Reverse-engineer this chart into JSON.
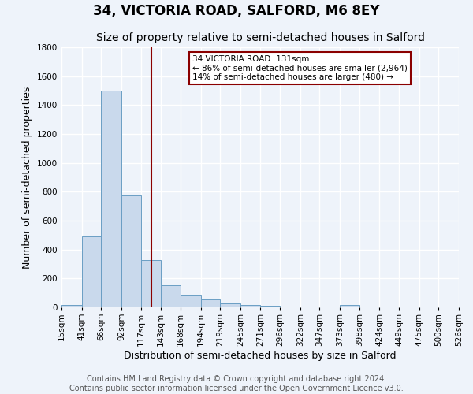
{
  "title": "34, VICTORIA ROAD, SALFORD, M6 8EY",
  "subtitle": "Size of property relative to semi-detached houses in Salford",
  "xlabel": "Distribution of semi-detached houses by size in Salford",
  "ylabel": "Number of semi-detached properties",
  "bar_color": "#c9d9ec",
  "bar_edge_color": "#6a9ec4",
  "background_color": "#eef3fa",
  "grid_color": "#ffffff",
  "vline_x": 131,
  "vline_color": "#8b0000",
  "annotation_title": "34 VICTORIA ROAD: 131sqm",
  "annotation_line1": "← 86% of semi-detached houses are smaller (2,964)",
  "annotation_line2": "14% of semi-detached houses are larger (480) →",
  "annotation_box_color": "#ffffff",
  "annotation_box_edge": "#8b0000",
  "bin_edges": [
    15,
    41,
    66,
    92,
    117,
    143,
    168,
    194,
    219,
    245,
    271,
    296,
    322,
    347,
    373,
    398,
    424,
    449,
    475,
    500,
    526
  ],
  "bin_labels": [
    "15sqm",
    "41sqm",
    "66sqm",
    "92sqm",
    "117sqm",
    "143sqm",
    "168sqm",
    "194sqm",
    "219sqm",
    "245sqm",
    "271sqm",
    "296sqm",
    "322sqm",
    "347sqm",
    "373sqm",
    "398sqm",
    "424sqm",
    "449sqm",
    "475sqm",
    "500sqm",
    "526sqm"
  ],
  "counts": [
    15,
    490,
    1500,
    775,
    325,
    155,
    90,
    55,
    30,
    15,
    10,
    5,
    0,
    0,
    15,
    0,
    0,
    0,
    0,
    0
  ],
  "ylim": [
    0,
    1800
  ],
  "yticks": [
    0,
    200,
    400,
    600,
    800,
    1000,
    1200,
    1400,
    1600,
    1800
  ],
  "footer_line1": "Contains HM Land Registry data © Crown copyright and database right 2024.",
  "footer_line2": "Contains public sector information licensed under the Open Government Licence v3.0.",
  "title_fontsize": 12,
  "subtitle_fontsize": 10,
  "axis_label_fontsize": 9,
  "tick_fontsize": 7.5,
  "footer_fontsize": 7
}
